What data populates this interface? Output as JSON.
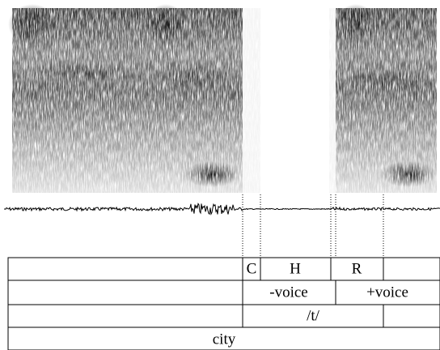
{
  "tiers": [
    [
      "C",
      "H",
      "R"
    ],
    [
      "-voice",
      "+voice"
    ],
    [
      "/t/"
    ],
    [
      "city"
    ]
  ]
}
